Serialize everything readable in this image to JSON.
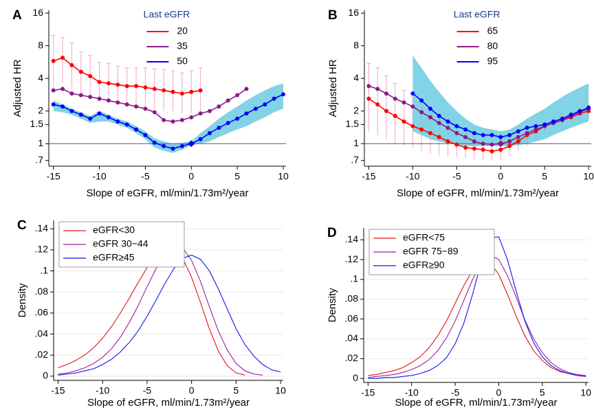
{
  "chart_data": [
    {
      "type": "line",
      "panel_label": "A",
      "xlabel": "Slope of eGFR, ml/min/1.73m²/year",
      "ylabel": "Adjusted HR",
      "log_y": true,
      "markers": true,
      "legend": "top-center",
      "legend_title": "Last eGFR",
      "legend_title_color": "#1a3a8a",
      "x": [
        -15,
        -14,
        -13,
        -12,
        -11,
        -10,
        -9,
        -8,
        -7,
        -6,
        -5,
        -4,
        -3,
        -2,
        -1,
        0,
        1,
        2,
        3,
        4,
        5,
        6,
        7,
        8,
        9,
        10
      ],
      "xlim": [
        -15.5,
        10.3
      ],
      "xticks": [
        -15,
        -10,
        -5,
        0,
        5,
        10
      ],
      "ylim": [
        0.62,
        17
      ],
      "yticks": [
        {
          "value": 0.7,
          "label": ".7"
        },
        1,
        1.5,
        2,
        4,
        8,
        16
      ],
      "hline": 1,
      "ref_point": {
        "x": 0,
        "y": 1,
        "color": "#0000ff"
      },
      "series": [
        {
          "name": "20",
          "color": "#ff0000",
          "ci_style": "errorbar",
          "ci_color": "#f5a3c7",
          "values": [
            5.8,
            6.2,
            5.3,
            4.6,
            4.2,
            3.7,
            3.6,
            3.5,
            3.4,
            3.4,
            3.3,
            3.2,
            3.1,
            3.0,
            2.9,
            3.0,
            3.1,
            null,
            null,
            null,
            null,
            null,
            null,
            null,
            null,
            null
          ],
          "ci_upper": [
            10,
            9.5,
            8.5,
            7,
            6.5,
            5.6,
            5.5,
            5.2,
            5,
            5,
            5,
            4.9,
            4.8,
            4.7,
            4.5,
            4.7,
            5,
            null,
            null,
            null,
            null,
            null,
            null,
            null,
            null,
            null
          ],
          "ci_lower": [
            3.3,
            3.6,
            3.2,
            2.9,
            2.7,
            2.4,
            2.4,
            2.3,
            2.3,
            2.3,
            2.2,
            2.1,
            2.0,
            2.0,
            1.9,
            1.9,
            1.9,
            null,
            null,
            null,
            null,
            null,
            null,
            null,
            null,
            null
          ]
        },
        {
          "name": "35",
          "color": "#8b1a8b",
          "values": [
            3.1,
            3.2,
            2.9,
            2.8,
            2.7,
            2.6,
            2.5,
            2.4,
            2.3,
            2.2,
            2.1,
            1.95,
            1.65,
            1.6,
            1.65,
            1.75,
            1.9,
            2.0,
            2.2,
            2.5,
            2.8,
            3.2,
            null,
            null,
            null,
            null
          ]
        },
        {
          "name": "50",
          "color": "#0000ff",
          "ci_style": "band",
          "ci_color": "#6ccbe0",
          "values": [
            2.3,
            2.2,
            2.0,
            1.85,
            1.7,
            1.9,
            1.75,
            1.6,
            1.5,
            1.35,
            1.2,
            1.02,
            0.95,
            0.9,
            0.95,
            1.0,
            1.1,
            1.25,
            1.4,
            1.55,
            1.7,
            1.9,
            2.1,
            2.3,
            2.6,
            2.85
          ],
          "ci_upper": [
            2.5,
            2.3,
            2.1,
            1.95,
            1.8,
            2.0,
            1.85,
            1.7,
            1.6,
            1.45,
            1.3,
            1.12,
            1.05,
            1.0,
            1.02,
            1.05,
            1.25,
            1.45,
            1.7,
            1.95,
            2.2,
            2.5,
            2.8,
            3.1,
            3.4,
            3.6
          ],
          "ci_lower": [
            2.0,
            1.95,
            1.85,
            1.7,
            1.55,
            1.6,
            1.6,
            1.5,
            1.4,
            1.25,
            1.1,
            0.92,
            0.86,
            0.82,
            0.88,
            0.97,
            1.0,
            1.05,
            1.15,
            1.25,
            1.35,
            1.45,
            1.6,
            1.75,
            1.95,
            2.1
          ]
        }
      ]
    },
    {
      "type": "line",
      "panel_label": "B",
      "xlabel": "Slope of eGFR, ml/min/1.73m²/year",
      "ylabel": "Adjusted HR",
      "log_y": true,
      "markers": true,
      "legend": "top-center",
      "legend_title": "Last eGFR",
      "legend_title_color": "#1a3a8a",
      "x": [
        -15,
        -14,
        -13,
        -12,
        -11,
        -10,
        -9,
        -8,
        -7,
        -6,
        -5,
        -4,
        -3,
        -2,
        -1,
        0,
        1,
        2,
        3,
        4,
        5,
        6,
        7,
        8,
        9,
        10
      ],
      "xlim": [
        -15.5,
        10.3
      ],
      "xticks": [
        -15,
        -10,
        -5,
        0,
        5,
        10
      ],
      "ylim": [
        0.62,
        17
      ],
      "yticks": [
        {
          "value": 0.7,
          "label": ".7"
        },
        1,
        1.5,
        2,
        4,
        8,
        16
      ],
      "hline": 1,
      "ref_point": {
        "x": 0,
        "y": 1,
        "color": "#8b1a8b"
      },
      "series": [
        {
          "name": "65",
          "color": "#ff0000",
          "ci_style": "errorbar",
          "ci_color": "#f5a3c7",
          "values": [
            2.6,
            2.3,
            2.0,
            1.8,
            1.6,
            1.45,
            1.35,
            1.25,
            1.15,
            1.05,
            0.98,
            0.92,
            0.9,
            0.88,
            0.85,
            0.88,
            0.95,
            1.05,
            1.2,
            1.3,
            1.45,
            1.55,
            1.65,
            1.75,
            1.9,
            2.0
          ],
          "ci_upper": [
            5.5,
            5,
            4.2,
            3.6,
            3.1,
            2.7,
            2.4,
            2.1,
            1.9,
            1.7,
            1.5,
            1.35,
            1.25,
            1.15,
            1.1,
            1.1,
            1.2,
            1.3,
            1.45,
            1.55,
            1.7,
            1.8,
            1.9,
            2.0,
            2.15,
            2.3
          ],
          "ci_lower": [
            1.3,
            1.2,
            1.1,
            1.0,
            0.95,
            0.9,
            0.85,
            0.8,
            0.78,
            0.76,
            0.75,
            0.73,
            0.72,
            0.71,
            0.7,
            0.72,
            0.78,
            0.85,
            0.95,
            1.05,
            1.2,
            1.3,
            1.4,
            1.5,
            1.6,
            1.7
          ]
        },
        {
          "name": "80",
          "color": "#8b1a8b",
          "values": [
            3.4,
            3.2,
            2.9,
            2.6,
            2.4,
            2.2,
            1.95,
            1.75,
            1.55,
            1.4,
            1.25,
            1.15,
            1.05,
            1.0,
            0.98,
            1.0,
            1.05,
            1.15,
            1.25,
            1.35,
            1.45,
            1.55,
            1.65,
            1.8,
            1.95,
            2.1
          ]
        },
        {
          "name": "95",
          "color": "#0000ff",
          "ci_style": "band",
          "ci_color": "#6ccbe0",
          "values": [
            null,
            null,
            null,
            null,
            null,
            2.9,
            2.5,
            2.1,
            1.8,
            1.6,
            1.45,
            1.35,
            1.25,
            1.2,
            1.2,
            1.15,
            1.2,
            1.3,
            1.4,
            1.45,
            1.5,
            1.6,
            1.7,
            1.85,
            2.0,
            2.15
          ],
          "ci_upper": [
            null,
            null,
            null,
            null,
            null,
            6.5,
            5,
            3.8,
            3.0,
            2.4,
            2.0,
            1.7,
            1.5,
            1.4,
            1.35,
            1.3,
            1.35,
            1.5,
            1.7,
            1.9,
            2.1,
            2.4,
            2.7,
            3.0,
            3.3,
            3.6
          ],
          "ci_lower": [
            null,
            null,
            null,
            null,
            null,
            1.3,
            1.2,
            1.1,
            1.05,
            1.0,
            0.98,
            0.95,
            0.95,
            0.95,
            0.95,
            0.95,
            0.95,
            0.97,
            1.0,
            1.05,
            1.1,
            1.2,
            1.3,
            1.4,
            1.5,
            1.6
          ]
        }
      ]
    },
    {
      "type": "line",
      "panel_label": "C",
      "xlabel": "Slope of eGFR, ml/min/1.73m²/year",
      "ylabel": "Density",
      "log_y": false,
      "markers": false,
      "grid": true,
      "legend": "top-left",
      "x": [
        -15,
        -14,
        -13,
        -12,
        -11,
        -10,
        -9,
        -8,
        -7,
        -6,
        -5,
        -4,
        -3,
        -2,
        -1,
        0,
        1,
        2,
        3,
        4,
        5,
        6,
        7,
        8,
        9,
        10
      ],
      "xlim": [
        -15.5,
        10.3
      ],
      "xticks": [
        -15,
        -10,
        -5,
        0,
        5,
        10
      ],
      "ylim": [
        -0.004,
        0.148
      ],
      "yticks": [
        0,
        {
          "value": 0.02,
          "label": ".02"
        },
        {
          "value": 0.04,
          "label": ".04"
        },
        {
          "value": 0.06,
          "label": ".06"
        },
        {
          "value": 0.08,
          "label": ".08"
        },
        {
          "value": 0.1,
          "label": ".1"
        },
        {
          "value": 0.12,
          "label": ".12"
        },
        {
          "value": 0.14,
          "label": ".14"
        }
      ],
      "series": [
        {
          "name": "eGFR<30",
          "color": "#e8101a",
          "values": [
            0.008,
            0.011,
            0.015,
            0.02,
            0.027,
            0.036,
            0.047,
            0.06,
            0.074,
            0.089,
            0.103,
            0.114,
            0.121,
            0.121,
            0.112,
            0.094,
            0.07,
            0.045,
            0.024,
            0.01,
            0.003,
            0.001,
            null,
            null,
            null,
            null
          ]
        },
        {
          "name": "eGFR 30−44",
          "color": "#9b1f9b",
          "values": [
            0.002,
            0.003,
            0.005,
            0.008,
            0.012,
            0.018,
            0.026,
            0.037,
            0.051,
            0.067,
            0.085,
            0.102,
            0.116,
            0.124,
            0.122,
            0.11,
            0.09,
            0.066,
            0.043,
            0.025,
            0.012,
            0.005,
            0.002,
            0.001,
            null,
            null
          ]
        },
        {
          "name": "eGFR≥45",
          "color": "#1010f0",
          "values": [
            0.001,
            0.002,
            0.003,
            0.005,
            0.007,
            0.011,
            0.016,
            0.023,
            0.032,
            0.043,
            0.057,
            0.072,
            0.088,
            0.102,
            0.112,
            0.115,
            0.111,
            0.1,
            0.083,
            0.064,
            0.045,
            0.03,
            0.019,
            0.011,
            0.006,
            0.004
          ]
        }
      ]
    },
    {
      "type": "line",
      "panel_label": "D",
      "xlabel": "Slope of eGFR, ml/min/1.73m²/year",
      "ylabel": "Density",
      "log_y": false,
      "markers": false,
      "grid": true,
      "legend": "top-left",
      "x": [
        -15,
        -14,
        -13,
        -12,
        -11,
        -10,
        -9,
        -8,
        -7,
        -6,
        -5,
        -4,
        -3,
        -2,
        -1,
        0,
        1,
        2,
        3,
        4,
        5,
        6,
        7,
        8,
        9,
        10
      ],
      "xlim": [
        -15.5,
        10.3
      ],
      "xticks": [
        -15,
        -10,
        -5,
        0,
        5,
        10
      ],
      "ylim": [
        -0.004,
        0.152
      ],
      "yticks": [
        0,
        {
          "value": 0.02,
          "label": ".02"
        },
        {
          "value": 0.04,
          "label": ".04"
        },
        {
          "value": 0.06,
          "label": ".06"
        },
        {
          "value": 0.08,
          "label": ".08"
        },
        {
          "value": 0.1,
          "label": ".1"
        },
        {
          "value": 0.12,
          "label": ".12"
        },
        {
          "value": 0.14,
          "label": ".14"
        }
      ],
      "series": [
        {
          "name": "eGFR<75",
          "color": "#e8101a",
          "values": [
            0.003,
            0.004,
            0.006,
            0.008,
            0.011,
            0.016,
            0.022,
            0.031,
            0.043,
            0.058,
            0.076,
            0.094,
            0.109,
            0.117,
            0.117,
            0.105,
            0.085,
            0.063,
            0.043,
            0.028,
            0.018,
            0.011,
            0.007,
            0.005,
            0.003,
            0.002
          ]
        },
        {
          "name": "eGFR 75−89",
          "color": "#9b1f9b",
          "values": [
            0.001,
            0.002,
            0.003,
            0.004,
            0.006,
            0.009,
            0.013,
            0.019,
            0.028,
            0.041,
            0.058,
            0.079,
            0.1,
            0.117,
            0.125,
            0.12,
            0.104,
            0.082,
            0.059,
            0.04,
            0.026,
            0.016,
            0.01,
            0.006,
            0.004,
            0.003
          ]
        },
        {
          "name": "eGFR≥90",
          "color": "#1010f0",
          "values": [
            0,
            0,
            0.001,
            0.001,
            0.002,
            0.003,
            0.005,
            0.008,
            0.013,
            0.021,
            0.035,
            0.056,
            0.085,
            0.118,
            0.142,
            0.143,
            0.12,
            0.088,
            0.058,
            0.036,
            0.022,
            0.013,
            0.008,
            0.005,
            0.003,
            0.002
          ]
        }
      ]
    }
  ]
}
